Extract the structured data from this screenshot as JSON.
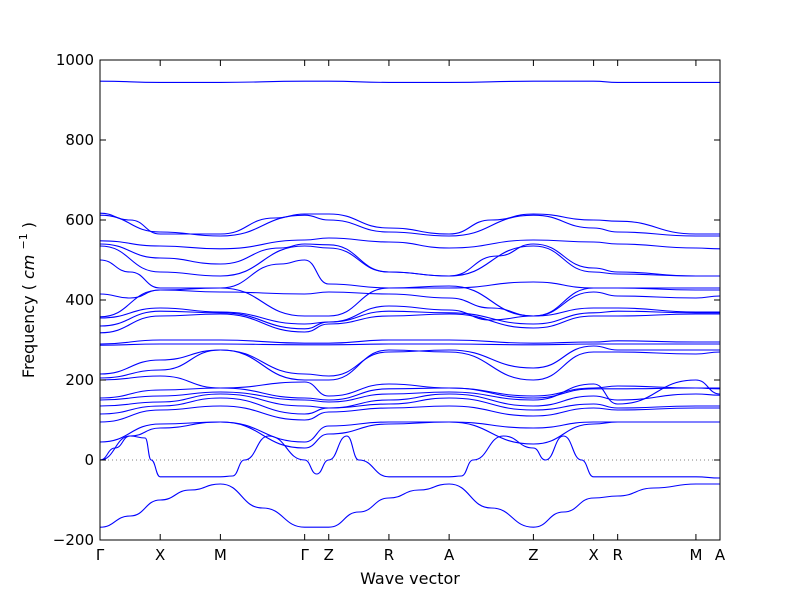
{
  "chart_data": {
    "type": "line",
    "xlabel": "Wave vector",
    "ylabel": "Frequency",
    "ylabel_unit_base": "cm",
    "ylabel_unit_exp": "−1",
    "ylim": [
      -200,
      1000
    ],
    "xlim": [
      0,
      10.3
    ],
    "yticks": [
      "1000",
      "800",
      "600",
      "400",
      "200",
      "0",
      "−200"
    ],
    "ytick_values": [
      1000,
      800,
      600,
      400,
      200,
      0,
      -200
    ],
    "qpoints": [
      {
        "label": "Γ",
        "x": 0.0
      },
      {
        "label": "X",
        "x": 1.0
      },
      {
        "label": "M",
        "x": 2.0
      },
      {
        "label": "Γ",
        "x": 3.4
      },
      {
        "label": "Z",
        "x": 3.8
      },
      {
        "label": "R",
        "x": 4.8
      },
      {
        "label": "A",
        "x": 5.8
      },
      {
        "label": "Z",
        "x": 7.2
      },
      {
        "label": "X",
        "x": 8.2
      },
      {
        "label": "R",
        "x": 8.6
      },
      {
        "label": "M",
        "x": 9.9
      },
      {
        "label": "A",
        "x": 10.3
      }
    ],
    "zero_line": true,
    "grid": false,
    "line_color": "#0000ff",
    "bands": [
      {
        "x": [
          0,
          1,
          2,
          3.4,
          3.8,
          4.8,
          5.8,
          7.2,
          8.2,
          8.6,
          9.9,
          10.3
        ],
        "y": [
          947,
          944,
          944,
          947,
          947,
          944,
          944,
          947,
          947,
          944,
          944,
          944
        ]
      },
      {
        "x": [
          0,
          0.5,
          1,
          2,
          2.9,
          3.4,
          3.8,
          4.8,
          5.8,
          6.5,
          7.2,
          8.2,
          8.6,
          9.9,
          10.3
        ],
        "y": [
          617,
          600,
          565,
          565,
          605,
          615,
          615,
          580,
          565,
          600,
          615,
          600,
          597,
          565,
          565
        ]
      },
      {
        "x": [
          0,
          1,
          2,
          3.4,
          3.8,
          4.8,
          5.8,
          7.2,
          8.2,
          8.6,
          9.9,
          10.3
        ],
        "y": [
          612,
          570,
          560,
          612,
          600,
          570,
          560,
          612,
          580,
          570,
          560,
          560
        ]
      },
      {
        "x": [
          0,
          1,
          2,
          3.4,
          3.8,
          4.8,
          5.8,
          7.2,
          8.2,
          8.6,
          9.9,
          10.3
        ],
        "y": [
          548,
          535,
          528,
          550,
          555,
          545,
          530,
          550,
          545,
          540,
          530,
          528
        ]
      },
      {
        "x": [
          0,
          1,
          2,
          3,
          3.4,
          3.8,
          4.8,
          5.8,
          6.6,
          7.2,
          8.2,
          8.6,
          9.9,
          10.3
        ],
        "y": [
          540,
          505,
          490,
          530,
          540,
          538,
          470,
          460,
          510,
          540,
          480,
          470,
          460,
          460
        ]
      },
      {
        "x": [
          0,
          1,
          2,
          3.4,
          3.8,
          4.8,
          5.8,
          7.2,
          8.2,
          8.6,
          9.9,
          10.3
        ],
        "y": [
          535,
          470,
          460,
          535,
          530,
          470,
          460,
          535,
          470,
          465,
          460,
          460
        ]
      },
      {
        "x": [
          0,
          0.5,
          1,
          2,
          3,
          3.4,
          3.8,
          4.8,
          5.8,
          7.2,
          8.2,
          8.6,
          9.9,
          10.3
        ],
        "y": [
          500,
          470,
          430,
          430,
          490,
          500,
          440,
          430,
          430,
          445,
          430,
          430,
          430,
          430
        ]
      },
      {
        "x": [
          0,
          0.5,
          1,
          2,
          3.4,
          3.8,
          4.8,
          5.8,
          6.5,
          7.2,
          8.2,
          8.6,
          9.9,
          10.3
        ],
        "y": [
          415,
          405,
          425,
          420,
          415,
          420,
          415,
          405,
          380,
          360,
          420,
          410,
          405,
          410
        ]
      },
      {
        "x": [
          0,
          1,
          2,
          3.4,
          3.8,
          4.8,
          5.8,
          7.2,
          8.2,
          8.6,
          9.9,
          10.3
        ],
        "y": [
          358,
          425,
          430,
          360,
          360,
          430,
          435,
          360,
          430,
          430,
          425,
          425
        ]
      },
      {
        "x": [
          0,
          1,
          2,
          3.4,
          3.8,
          4.8,
          5.8,
          6.5,
          7.2,
          8.2,
          8.6,
          9.9,
          10.3
        ],
        "y": [
          355,
          380,
          370,
          340,
          345,
          385,
          375,
          350,
          360,
          380,
          380,
          370,
          370
        ]
      },
      {
        "x": [
          0,
          1,
          2,
          3.4,
          3.8,
          4.8,
          5.8,
          7.2,
          8.2,
          8.6,
          9.9,
          10.3
        ],
        "y": [
          335,
          372,
          368,
          328,
          345,
          372,
          368,
          340,
          368,
          372,
          368,
          368
        ]
      },
      {
        "x": [
          0,
          1,
          2,
          3.4,
          3.8,
          4.8,
          5.8,
          7.2,
          8.2,
          8.6,
          9.9,
          10.3
        ],
        "y": [
          318,
          360,
          365,
          320,
          340,
          360,
          365,
          330,
          360,
          360,
          365,
          365
        ]
      },
      {
        "x": [
          0,
          1,
          2,
          3.4,
          3.8,
          4.8,
          5.8,
          7.2,
          8.2,
          8.6,
          9.9,
          10.3
        ],
        "y": [
          290,
          300,
          300,
          292,
          292,
          300,
          300,
          292,
          295,
          298,
          295,
          295
        ]
      },
      {
        "x": [
          0,
          1,
          2,
          3.4,
          3.8,
          4.8,
          5.8,
          7.2,
          8.2,
          8.6,
          9.9,
          10.3
        ],
        "y": [
          287,
          290,
          290,
          288,
          288,
          290,
          290,
          288,
          290,
          290,
          290,
          290
        ]
      },
      {
        "x": [
          0,
          1,
          2,
          3.4,
          3.8,
          4.8,
          5.8,
          7.2,
          8.2,
          8.6,
          9.9,
          10.3
        ],
        "y": [
          215,
          250,
          275,
          215,
          210,
          270,
          275,
          230,
          285,
          275,
          275,
          275
        ]
      },
      {
        "x": [
          0,
          1,
          2,
          3.4,
          3.8,
          4.8,
          5.8,
          7.2,
          8.2,
          8.6,
          9.9,
          10.3
        ],
        "y": [
          205,
          225,
          275,
          200,
          200,
          275,
          270,
          200,
          270,
          270,
          265,
          270
        ]
      },
      {
        "x": [
          0,
          1,
          2,
          3.4,
          3.8,
          4.8,
          5.8,
          7.2,
          8.2,
          8.6,
          9.9,
          10.3
        ],
        "y": [
          200,
          210,
          180,
          195,
          160,
          190,
          180,
          160,
          180,
          185,
          180,
          180
        ]
      },
      {
        "x": [
          0,
          1,
          2,
          3.4,
          3.8,
          4.8,
          5.8,
          7.2,
          8.2,
          8.6,
          9.9,
          10.3
        ],
        "y": [
          155,
          175,
          180,
          155,
          150,
          178,
          180,
          155,
          178,
          178,
          180,
          178
        ]
      },
      {
        "x": [
          0,
          1,
          2,
          3.4,
          3.8,
          4.8,
          5.8,
          7.2,
          8.2,
          8.6,
          9.9,
          10.3
        ],
        "y": [
          150,
          160,
          170,
          150,
          145,
          165,
          170,
          150,
          190,
          140,
          200,
          165
        ]
      },
      {
        "x": [
          0,
          1,
          2,
          3.4,
          3.8,
          4.8,
          5.8,
          7.2,
          8.2,
          8.6,
          9.9,
          10.3
        ],
        "y": [
          135,
          145,
          165,
          135,
          130,
          150,
          165,
          135,
          160,
          150,
          165,
          162
        ]
      },
      {
        "x": [
          0,
          1,
          2,
          3.4,
          3.8,
          4.8,
          5.8,
          7.2,
          8.2,
          8.6,
          9.9,
          10.3
        ],
        "y": [
          115,
          135,
          155,
          115,
          130,
          140,
          155,
          125,
          140,
          130,
          135,
          135
        ]
      },
      {
        "x": [
          0,
          1,
          2,
          3.4,
          3.8,
          4.8,
          5.8,
          7.2,
          8.2,
          8.6,
          9.9,
          10.3
        ],
        "y": [
          95,
          125,
          135,
          100,
          120,
          130,
          135,
          110,
          130,
          125,
          130,
          130
        ]
      },
      {
        "x": [
          0,
          1,
          2,
          3.4,
          3.8,
          4.8,
          5.8,
          7.2,
          8.2,
          8.6,
          9.9,
          10.3
        ],
        "y": [
          45,
          90,
          95,
          45,
          85,
          95,
          95,
          80,
          95,
          95,
          95,
          95
        ]
      },
      {
        "x": [
          0,
          0.5,
          1,
          2,
          3.4,
          3.8,
          4.8,
          5.8,
          7.2,
          8.2,
          8.6,
          9.9,
          10.3
        ],
        "y": [
          0,
          60,
          80,
          95,
          30,
          65,
          90,
          95,
          40,
          90,
          95,
          95,
          95
        ]
      },
      {
        "x": [
          0,
          0.25,
          0.5,
          0.75,
          0.85,
          1,
          2,
          2.2,
          2.4,
          2.8,
          3.4,
          3.6,
          3.8,
          4.1,
          4.3,
          4.8,
          5.8,
          6.0,
          6.2,
          6.7,
          7.2,
          7.4,
          7.7,
          8.0,
          8.2,
          8.6,
          9.9,
          10.3
        ],
        "y": [
          0,
          30,
          60,
          55,
          0,
          -42,
          -42,
          -40,
          0,
          60,
          0,
          -35,
          0,
          60,
          0,
          -42,
          -42,
          -40,
          0,
          60,
          30,
          0,
          60,
          0,
          -42,
          -42,
          -42,
          -45
        ]
      },
      {
        "x": [
          0,
          0.5,
          1,
          1.5,
          2,
          2.7,
          3.4,
          3.8,
          4.3,
          4.8,
          5.3,
          5.8,
          6.5,
          7.2,
          7.7,
          8.2,
          8.6,
          9.2,
          9.9,
          10.3
        ],
        "y": [
          -168,
          -140,
          -100,
          -75,
          -60,
          -120,
          -168,
          -168,
          -130,
          -95,
          -75,
          -60,
          -120,
          -168,
          -130,
          -95,
          -90,
          -70,
          -60,
          -60
        ]
      }
    ]
  }
}
